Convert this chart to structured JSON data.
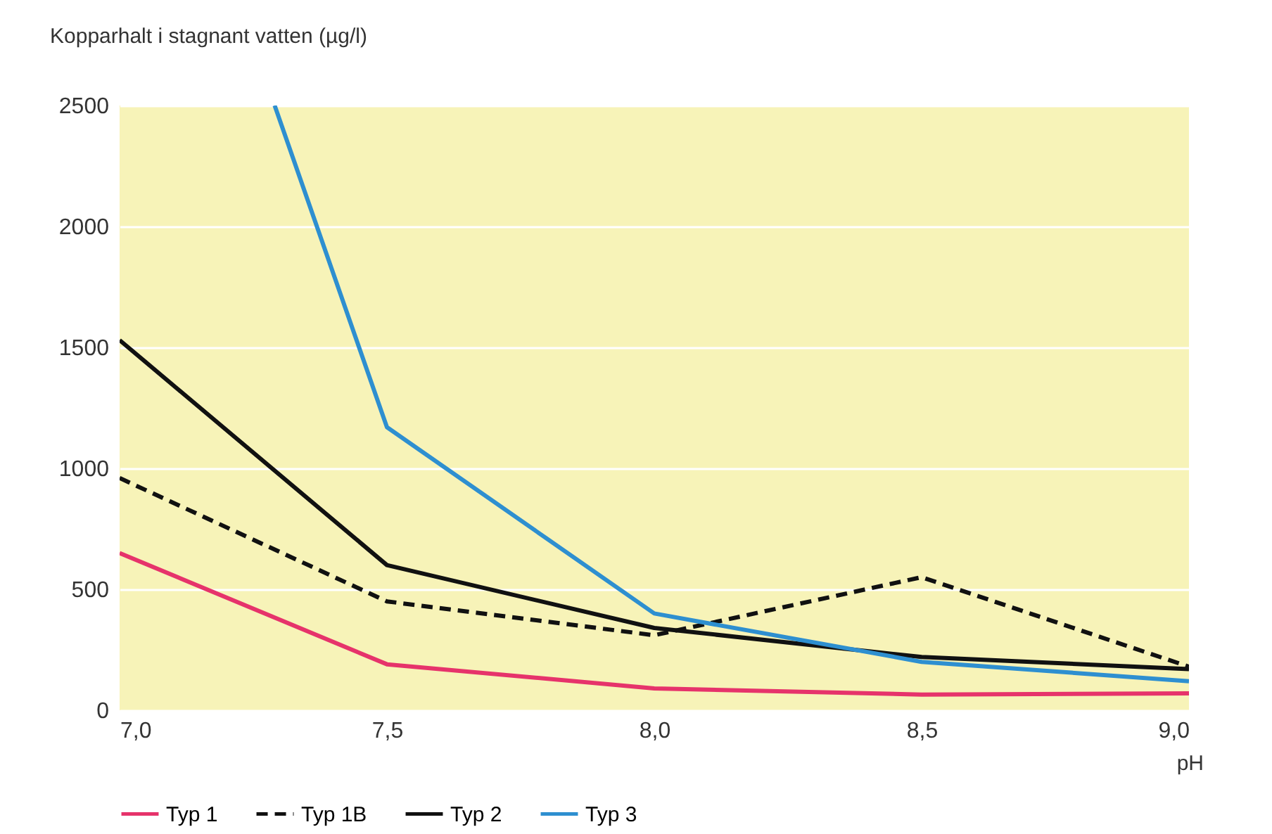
{
  "chart_data": {
    "type": "line",
    "ylabel": "Kopparhalt i stagnant vatten (µg/l)",
    "xlabel": "pH",
    "x": [
      7,
      7.5,
      8,
      8.5,
      9
    ],
    "xlim": [
      7,
      9
    ],
    "xticks": [
      {
        "value": 7,
        "label": "7,0"
      },
      {
        "value": 7.5,
        "label": "7,5"
      },
      {
        "value": 8,
        "label": "8,0"
      },
      {
        "value": 8.5,
        "label": "8,5"
      },
      {
        "value": 9,
        "label": "9,0"
      }
    ],
    "ylim": [
      0,
      2500
    ],
    "yticks": [
      0,
      500,
      1000,
      1500,
      2000,
      2500
    ],
    "grid": "y",
    "legend": "bottom",
    "line_style": "solid",
    "marker": "none",
    "series": [
      {
        "name": "Typ 1",
        "color": "#e6336b",
        "values": [
          650,
          190,
          90,
          65,
          70
        ]
      },
      {
        "name": "Typ 1B",
        "color": "#111111",
        "line_style": "dashed",
        "values": [
          960,
          450,
          310,
          550,
          180
        ]
      },
      {
        "name": "Typ 2",
        "color": "#111111",
        "values": [
          1530,
          600,
          340,
          220,
          170
        ]
      },
      {
        "name": "Typ 3",
        "color": "#2e8fd0",
        "x": [
          7.29,
          7.5,
          8,
          8.5,
          9
        ],
        "values": [
          2500,
          1170,
          400,
          200,
          120
        ]
      }
    ]
  }
}
